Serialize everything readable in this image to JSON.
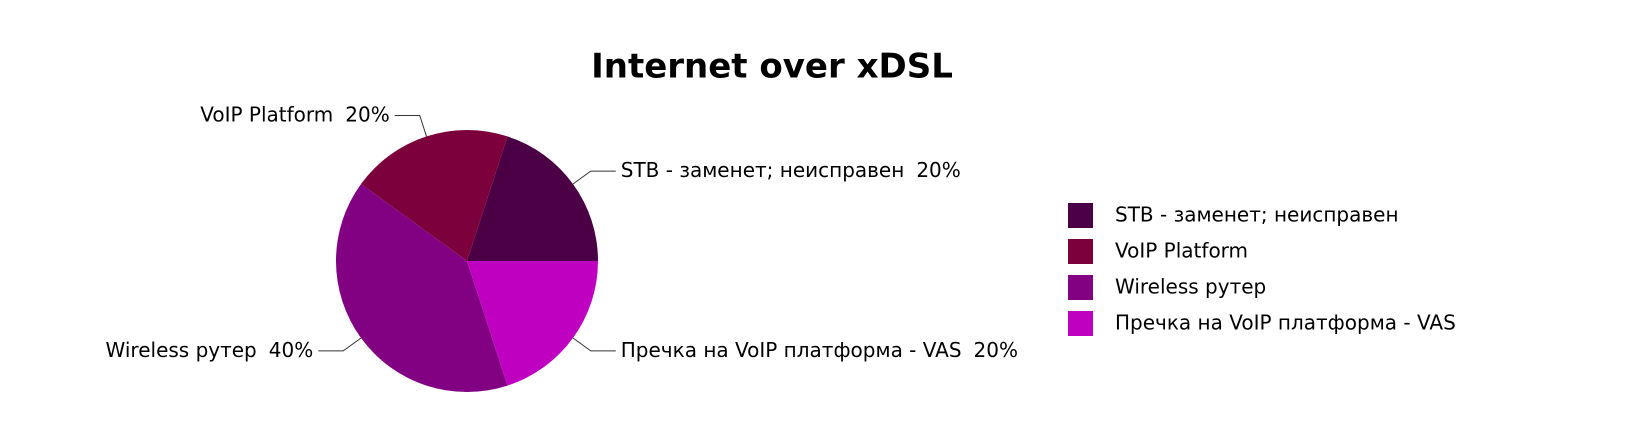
{
  "chart_data": {
    "type": "pie",
    "title": "Internet over  xDSL",
    "categories": [
      "STB - заменет; неисправен",
      "VoIP Platform",
      "Wireless рутер",
      "Пречка на VoIP платформа - VAS"
    ],
    "values": [
      20,
      20,
      40,
      20
    ],
    "value_labels": [
      "20%",
      "20%",
      "40%",
      "20%"
    ],
    "colors": [
      "#4b0045",
      "#7b003b",
      "#820082",
      "#c000c0"
    ],
    "legend": "right"
  }
}
